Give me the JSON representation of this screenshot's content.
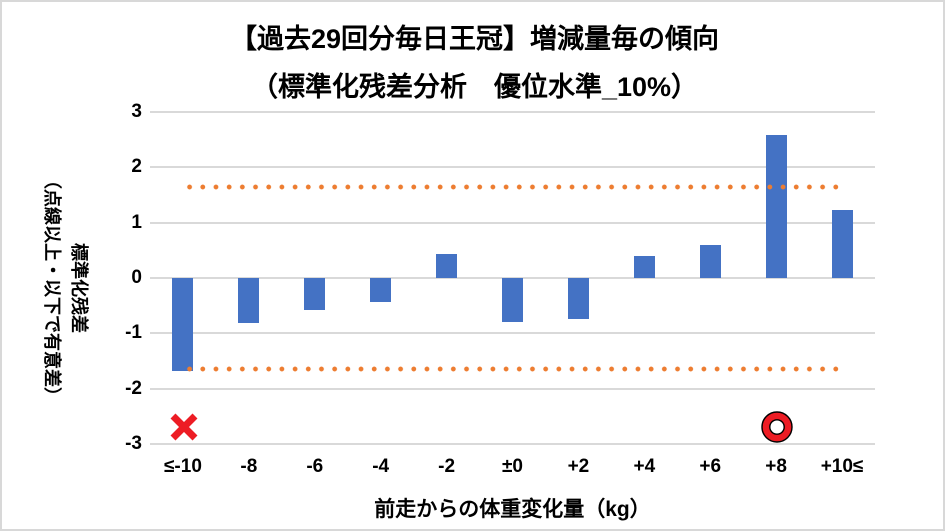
{
  "title": {
    "line1": "【過去29回分毎日王冠】増減量毎の傾向",
    "line2": "（標準化残差分析　優位水準_10%）"
  },
  "chart_data": {
    "type": "bar",
    "categories": [
      "≤-10",
      "-8",
      "-6",
      "-4",
      "-2",
      "±0",
      "+2",
      "+4",
      "+6",
      "+8",
      "+10≤"
    ],
    "values": [
      -1.68,
      -0.81,
      -0.57,
      -0.43,
      0.43,
      -0.79,
      -0.74,
      0.4,
      0.6,
      2.58,
      1.22
    ],
    "thresholds": [
      1.645,
      -1.645
    ],
    "ylim": [
      -3,
      3
    ],
    "yticks": [
      3,
      2,
      1,
      0,
      -1,
      -2,
      -3
    ],
    "xlabel": "前走からの体重変化量（kg）",
    "ylabel_line1": "標準化残差",
    "ylabel_line2": "（点線以上・以下で有意差）",
    "grid": true,
    "legend": "none",
    "markers": [
      {
        "index": 0,
        "category": "≤-10",
        "symbol": "x",
        "meaning": "significant-negative",
        "y": -2.7
      },
      {
        "index": 9,
        "category": "+8",
        "symbol": "double-circle",
        "meaning": "significant-positive",
        "y": -2.7
      }
    ],
    "colors": {
      "bar": "#4472c4",
      "threshold_dotted": "#ed7d31",
      "gridline": "#d9d9d9",
      "marker_red": "#ed1c24"
    }
  }
}
